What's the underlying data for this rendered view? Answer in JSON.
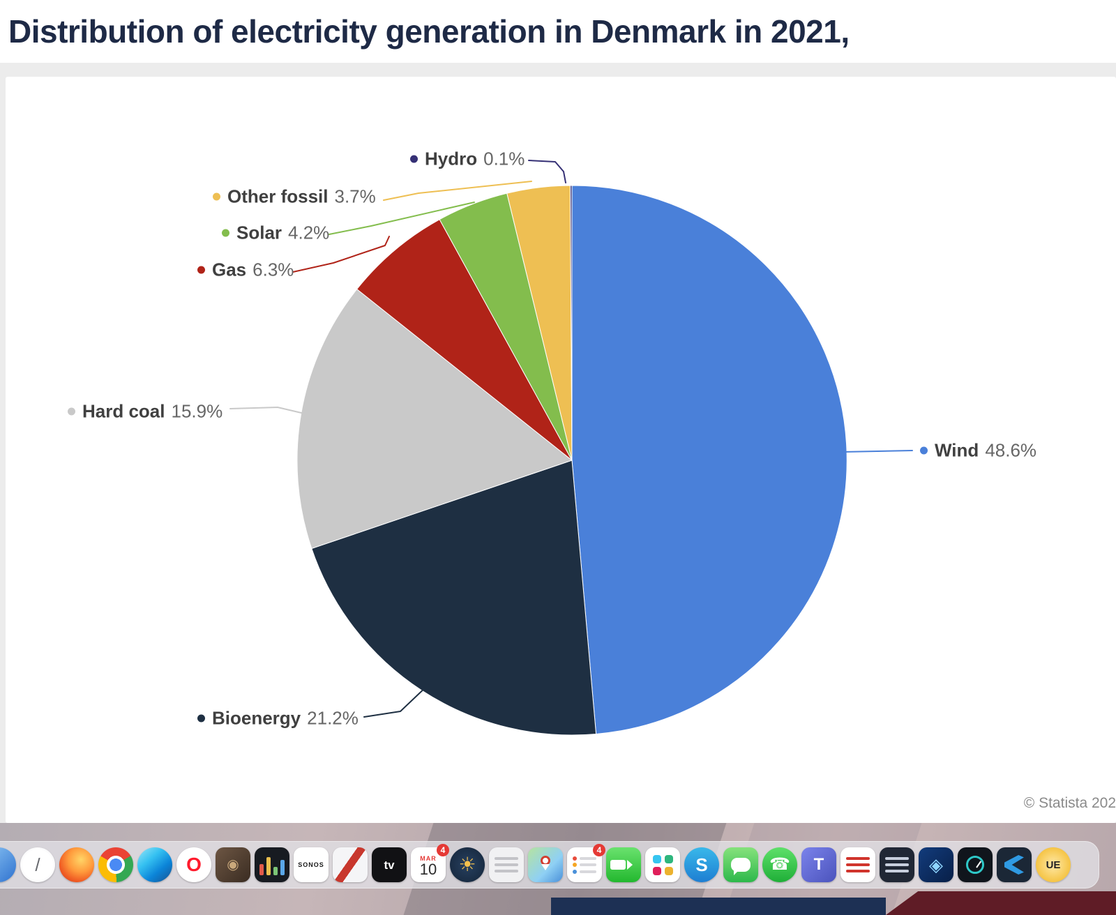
{
  "title": "Distribution of electricity generation in Denmark in 2021,",
  "source": "© Statista 202",
  "chart_data": {
    "type": "pie",
    "title": "Distribution of electricity generation in Denmark in 2021,",
    "start_angle_deg": 0,
    "direction": "clockwise",
    "legend_position": "callout-labels",
    "slices": [
      {
        "label": "Wind",
        "value": 48.6,
        "display": "48.6%",
        "color": "#4a80d9"
      },
      {
        "label": "Bioenergy",
        "value": 21.2,
        "display": "21.2%",
        "color": "#1e2f42"
      },
      {
        "label": "Hard coal",
        "value": 15.9,
        "display": "15.9%",
        "color": "#c9c9c9"
      },
      {
        "label": "Gas",
        "value": 6.3,
        "display": "6.3%",
        "color": "#b02318"
      },
      {
        "label": "Solar",
        "value": 4.2,
        "display": "4.2%",
        "color": "#83bd4d"
      },
      {
        "label": "Other fossil",
        "value": 3.7,
        "display": "3.7%",
        "color": "#eebf53"
      },
      {
        "label": "Hydro",
        "value": 0.1,
        "display": "0.1%",
        "color": "#353075"
      }
    ]
  },
  "dock": {
    "items": [
      {
        "name": "finder",
        "type": "plain",
        "shape": "circle",
        "bg": "linear-gradient(135deg,#8ec7f5,#2f72cf)",
        "glyph": ""
      },
      {
        "name": "compass-app",
        "type": "plain",
        "shape": "circle",
        "bg": "radial-gradient(circle,#ffffff 60%,#e6e6ea 100%)",
        "glyph": "/",
        "fg": "#67696e",
        "fs": 26
      },
      {
        "name": "firefox",
        "type": "plain",
        "shape": "circle",
        "bg": "radial-gradient(circle at 62% 35%,#ffd567 0%,#ff9a3c 40%,#ef5a23 70%,#c33b1b 100%)",
        "glyph": ""
      },
      {
        "name": "chrome",
        "type": "plain",
        "shape": "circle",
        "bg": "radial-gradient(circle,#4a8af4 0 9px,#ffffff 9px 13px,rgba(0,0,0,0) 13px),conic-gradient(from -60deg,#ea4335 0 33%,#34a853 33% 66%,#fbbc05 66% 100%)",
        "glyph": ""
      },
      {
        "name": "edge",
        "type": "plain",
        "shape": "circle",
        "bg": "linear-gradient(140deg,#9be6f7 0%,#35c1f1 35%,#0b84d8 65%,#17518f 100%)",
        "glyph": ""
      },
      {
        "name": "opera",
        "type": "plain",
        "shape": "circle",
        "bg": "#ffffff",
        "glyph": "O",
        "fg": "#ff1b2d",
        "fs": 28,
        "bold": true
      },
      {
        "name": "brown-box-app",
        "type": "plain",
        "bg": "linear-gradient(135deg,#6d5643,#3a2c22)",
        "glyph": "◉",
        "fg": "#c9a87b",
        "fs": 20
      },
      {
        "name": "equalizer-app",
        "type": "bars",
        "bg": "#171b21",
        "bars": [
          "#e25b4a",
          "#eabf4e",
          "#7cc576",
          "#5aa7e8"
        ]
      },
      {
        "name": "sonos",
        "type": "plain",
        "bg": "#ffffff",
        "glyph": "SONOS",
        "fg": "#1a1a1a",
        "fs": 9,
        "bold": true,
        "ls": 1
      },
      {
        "name": "delivery-app",
        "type": "plain",
        "bg": "linear-gradient(125deg,rgba(0,0,0,0) 42%,#c8372d 42%,#c8372d 58%,rgba(0,0,0,0) 58%),#f5f5f7",
        "glyph": ""
      },
      {
        "name": "apple-tv",
        "type": "plain",
        "bg": "#111114",
        "glyph": "tv",
        "fg": "#ffffff",
        "fs": 17,
        "bold": true
      },
      {
        "name": "calendar",
        "type": "calendar",
        "month": "MAR",
        "day": "10",
        "badge": "4"
      },
      {
        "name": "sun-app",
        "type": "plain",
        "shape": "circle",
        "bg": "radial-gradient(circle,#274060 0%,#142438 100%)",
        "glyph": "☀",
        "fg": "#f6c14d",
        "fs": 28
      },
      {
        "name": "notes-app",
        "type": "lines",
        "bg": "#f1f1f3",
        "lines": [
          "#c3c3c8",
          "#c3c3c8",
          "#c3c3c8"
        ]
      },
      {
        "name": "maps-app",
        "type": "pin",
        "bg": "linear-gradient(135deg,#b5e3a0 0%,#8fd0f4 60%,#4a90d9 100%)"
      },
      {
        "name": "reminders-app",
        "type": "lines",
        "bg": "#ffffff",
        "lines": [
          "#d8d8dc",
          "#d8d8dc",
          "#d8d8dc"
        ],
        "dots": [
          "#e74c3c",
          "#f5a623",
          "#4a90d9"
        ],
        "badge": "4"
      },
      {
        "name": "facetime",
        "type": "camera",
        "bg": "linear-gradient(180deg,#6ae26e,#23b82f)"
      },
      {
        "name": "slack",
        "type": "dots4",
        "bg": "#ffffff",
        "dots": [
          "#36c5f0",
          "#2eb67d",
          "#e01e5a",
          "#ecb22e"
        ]
      },
      {
        "name": "skype",
        "type": "plain",
        "shape": "circle",
        "bg": "linear-gradient(180deg,#39b8ea,#1e7ed2)",
        "glyph": "S",
        "fg": "#ffffff",
        "fs": 26,
        "bold": true
      },
      {
        "name": "messages",
        "type": "bubble",
        "bg": "linear-gradient(180deg,#86e27c,#2db84b)"
      },
      {
        "name": "whatsapp",
        "type": "plain",
        "shape": "circle",
        "bg": "linear-gradient(180deg,#5ee06a,#1faf38)",
        "glyph": "☎",
        "fg": "#ffffff",
        "fs": 24
      },
      {
        "name": "teams",
        "type": "plain",
        "bg": "linear-gradient(135deg,#7b83eb,#4b53bc)",
        "glyph": "T",
        "fg": "#ffffff",
        "fs": 24,
        "bold": true
      },
      {
        "name": "red-list-app",
        "type": "lines",
        "bg": "#ffffff",
        "lines": [
          "#d0342c",
          "#d0342c",
          "#d0342c"
        ]
      },
      {
        "name": "dark-notes-app",
        "type": "lines",
        "bg": "#202735",
        "lines": [
          "#c7cedd",
          "#c7cedd",
          "#c7cedd"
        ]
      },
      {
        "name": "blue-diamond-app",
        "type": "plain",
        "bg": "linear-gradient(135deg,#123c7d,#081f47)",
        "glyph": "◈",
        "fg": "#8fd6ff",
        "fs": 26
      },
      {
        "name": "clock-app",
        "type": "ring",
        "bg": "#10151c",
        "ring": "#2ec8c8"
      },
      {
        "name": "vscode",
        "type": "vscode",
        "bg": "#1b2736",
        "fg": "#2f9ae3"
      },
      {
        "name": "ue-app",
        "type": "plain",
        "shape": "circle",
        "bg": "radial-gradient(circle,#ffe9a8 0%,#f5c445 70%,#e2a92f 100%)",
        "glyph": "UE",
        "fg": "#222222",
        "fs": 15,
        "bold": true
      }
    ]
  }
}
